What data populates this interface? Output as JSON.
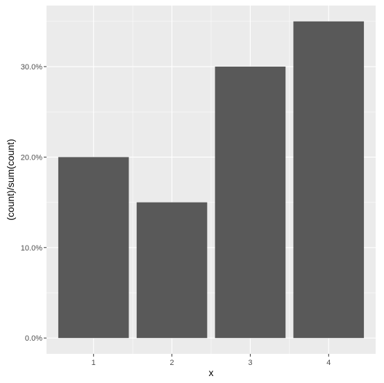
{
  "chart_data": {
    "type": "bar",
    "categories": [
      "1",
      "2",
      "3",
      "4"
    ],
    "values": [
      0.2,
      0.15,
      0.3,
      0.35
    ],
    "xlabel": "x",
    "ylabel": "(count)/sum(count)",
    "ylim": [
      -0.0175,
      0.3675
    ],
    "y_ticks": [
      0.0,
      0.1,
      0.2,
      0.3
    ],
    "y_tick_labels": [
      "0.0%",
      "10.0%",
      "20.0%",
      "30.0%"
    ],
    "grid": true,
    "legend": "none",
    "colors": {
      "bar": "#595959",
      "panel_background": "#ebebeb",
      "grid_major": "#ffffff",
      "tick_label": "#4d4d4d"
    }
  }
}
